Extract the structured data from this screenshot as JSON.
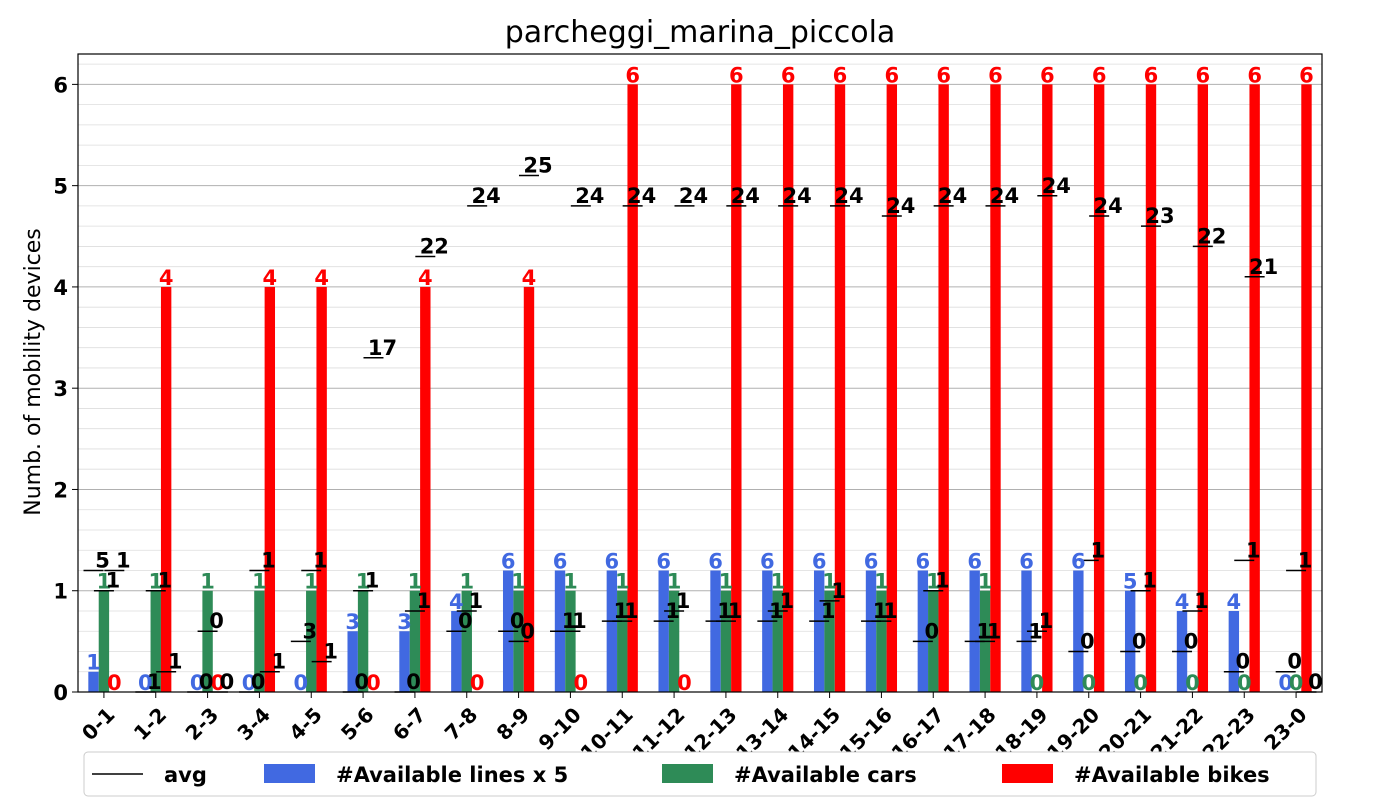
{
  "chart_data": {
    "type": "bar",
    "title": "parcheggi_marina_piccola",
    "xlabel": "",
    "ylabel": "Numb. of mobility devices",
    "ylim": [
      0,
      6.3
    ],
    "yticks": [
      "0",
      "1",
      "2",
      "3",
      "4",
      "5",
      "6"
    ],
    "grid": true,
    "legend_position": "bottom",
    "categories": [
      "0-1",
      "1-2",
      "2-3",
      "3-4",
      "4-5",
      "5-6",
      "6-7",
      "7-8",
      "8-9",
      "9-10",
      "10-11",
      "11-12",
      "12-13",
      "13-14",
      "14-15",
      "15-16",
      "16-17",
      "17-18",
      "18-19",
      "19-20",
      "20-21",
      "21-22",
      "22-23",
      "23-0"
    ],
    "series": [
      {
        "name": "#Available lines x 5",
        "color": "#4169e1",
        "values": [
          0.2,
          0,
          0,
          0,
          0,
          0.6,
          0.6,
          0.8,
          1.2,
          1.2,
          1.2,
          1.2,
          1.2,
          1.2,
          1.2,
          1.2,
          1.2,
          1.2,
          1.2,
          1.2,
          1.0,
          0.8,
          0.8,
          0
        ],
        "labels": [
          "1",
          "0",
          "0",
          "0",
          "0",
          "3",
          "3",
          "4",
          "6",
          "6",
          "6",
          "6",
          "6",
          "6",
          "6",
          "6",
          "6",
          "6",
          "6",
          "6",
          "5",
          "4",
          "4",
          "0"
        ]
      },
      {
        "name": "#Available cars",
        "color": "#2e8b57",
        "values": [
          1,
          1,
          1,
          1,
          1,
          1,
          1,
          1,
          1,
          1,
          1,
          1,
          1,
          1,
          1,
          1,
          1,
          1,
          0,
          0,
          0,
          0,
          0,
          0
        ],
        "labels": [
          "1",
          "1",
          "1",
          "1",
          "1",
          "1",
          "1",
          "1",
          "1",
          "1",
          "1",
          "1",
          "1",
          "1",
          "1",
          "1",
          "1",
          "1",
          "0",
          "0",
          "0",
          "0",
          "0",
          "0"
        ]
      },
      {
        "name": "#Available bikes",
        "color": "#ff0000",
        "values": [
          0,
          4,
          0,
          4,
          4,
          0,
          4,
          0,
          4,
          0,
          6,
          0,
          6,
          6,
          6,
          6,
          6,
          6,
          6,
          6,
          6,
          6,
          6,
          6
        ],
        "labels": [
          "0",
          "4",
          "0",
          "4",
          "4",
          "0",
          "4",
          "0",
          "4",
          "0",
          "6",
          "0",
          "6",
          "6",
          "6",
          "6",
          "6",
          "6",
          "6",
          "6",
          "6",
          "6",
          "6",
          "6"
        ]
      }
    ],
    "avg": {
      "name": "avg",
      "color": "#000000",
      "lines": [
        1.2,
        0.0,
        0.0,
        0.0,
        0.5,
        0.0,
        0.0,
        0.6,
        0.6,
        0.6,
        0.7,
        0.7,
        0.7,
        0.7,
        0.7,
        0.7,
        0.5,
        0.5,
        0.5,
        0.4,
        0.4,
        0.4,
        0.2,
        0.2
      ],
      "lines_labels": [
        "5",
        "1",
        "0",
        "0",
        "3",
        "0",
        "0",
        "0",
        "0",
        "1",
        "1",
        "1",
        "1",
        "1",
        "1",
        "1",
        "0",
        "1",
        "1",
        "0",
        "0",
        "0",
        "0",
        "0"
      ],
      "cars": [
        1.0,
        1.0,
        0.6,
        1.2,
        1.2,
        1.0,
        0.8,
        0.8,
        0.5,
        0.6,
        0.7,
        0.8,
        0.7,
        0.8,
        0.9,
        0.7,
        1.0,
        0.5,
        0.6,
        1.3,
        1.0,
        0.8,
        1.3,
        1.2
      ],
      "cars_labels": [
        "1",
        "1",
        "0",
        "1",
        "1",
        "1",
        "1",
        "1",
        "0",
        "1",
        "1",
        "1",
        "1",
        "1",
        "1",
        "1",
        "1",
        "1",
        "1",
        "1",
        "1",
        "1",
        "1",
        "1"
      ],
      "bikes": [
        1.2,
        0.2,
        0.0,
        0.2,
        0.3,
        3.3,
        4.3,
        4.8,
        5.1,
        4.8,
        4.8,
        4.8,
        4.8,
        4.8,
        4.8,
        4.7,
        4.8,
        4.8,
        4.9,
        4.7,
        4.6,
        4.4,
        4.1,
        0.0
      ],
      "bikes_labels": [
        "1",
        "1",
        "0",
        "1",
        "1",
        "17",
        "22",
        "24",
        "25",
        "24",
        "24",
        "24",
        "24",
        "24",
        "24",
        "24",
        "24",
        "24",
        "24",
        "24",
        "23",
        "22",
        "21",
        "0"
      ]
    }
  }
}
